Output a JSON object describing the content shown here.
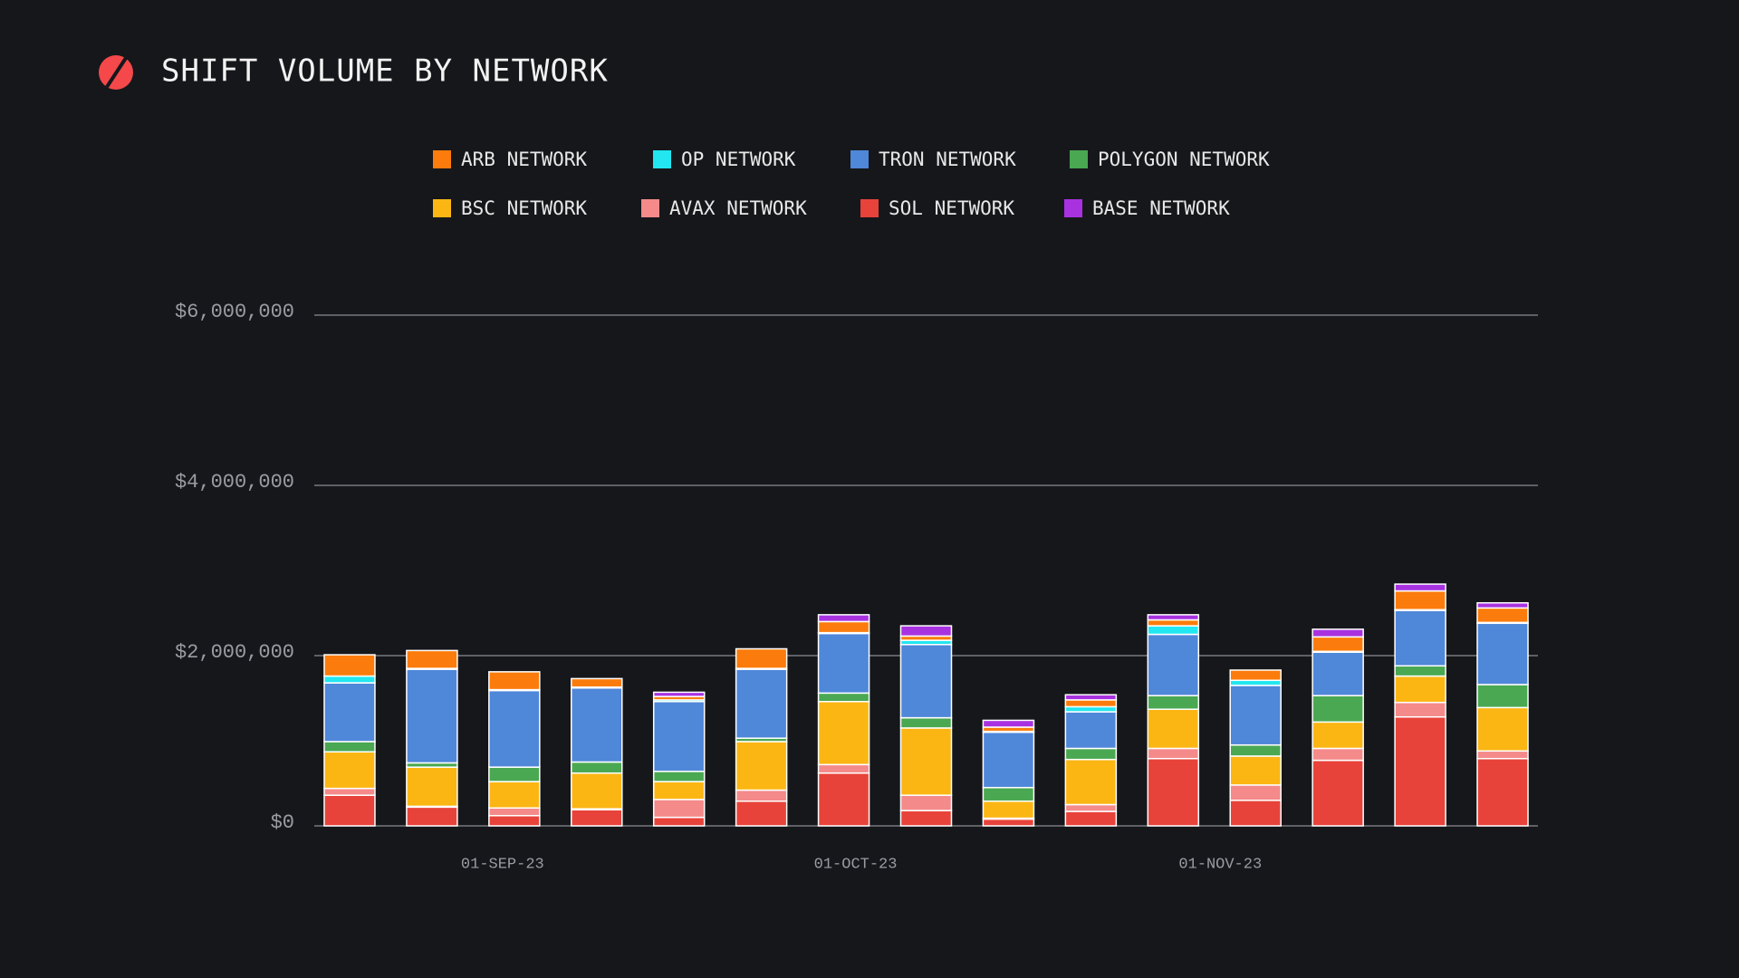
{
  "chart_data": {
    "type": "stacked-bar",
    "title": "SHIFT VOLUME BY NETWORK",
    "x": [
      "19-AUG-23",
      "26-AUG-23",
      "02-SEP-23",
      "09-SEP-23",
      "16-SEP-23",
      "23-SEP-23",
      "30-SEP-23",
      "07-OCT-23",
      "14-OCT-23",
      "21-OCT-23",
      "28-OCT-23",
      "04-NOV-23",
      "11-NOV-23",
      "18-NOV-23",
      "25-NOV-23"
    ],
    "xlim": [
      "16-AUG-23",
      "28-NOV-23"
    ],
    "xticks": [
      "01-SEP-23",
      "01-OCT-23",
      "01-NOV-23"
    ],
    "ylim": [
      0,
      6000000
    ],
    "yticks": [
      {
        "value": 0,
        "label": "$0"
      },
      {
        "value": 2000000,
        "label": "$2,000,000"
      },
      {
        "value": 4000000,
        "label": "$4,000,000"
      },
      {
        "value": 6000000,
        "label": "$6,000,000"
      }
    ],
    "grid": true,
    "legend_order": [
      6,
      5,
      4,
      3,
      2,
      1,
      0,
      7
    ],
    "series": [
      {
        "name": "SOL NETWORK",
        "color": "#e8433a",
        "values": [
          360000,
          220000,
          120000,
          190000,
          100000,
          290000,
          620000,
          180000,
          80000,
          170000,
          790000,
          300000,
          770000,
          1280000,
          790000
        ]
      },
      {
        "name": "AVAX NETWORK",
        "color": "#f48a8a",
        "values": [
          80000,
          10000,
          90000,
          10000,
          210000,
          130000,
          100000,
          180000,
          10000,
          80000,
          120000,
          180000,
          140000,
          170000,
          90000
        ]
      },
      {
        "name": "BSC NETWORK",
        "color": "#fbb614",
        "values": [
          430000,
          460000,
          310000,
          420000,
          210000,
          570000,
          740000,
          790000,
          200000,
          530000,
          460000,
          340000,
          310000,
          310000,
          510000
        ]
      },
      {
        "name": "POLYGON NETWORK",
        "color": "#4aa852",
        "values": [
          120000,
          50000,
          170000,
          130000,
          120000,
          40000,
          100000,
          120000,
          160000,
          130000,
          160000,
          130000,
          310000,
          120000,
          270000
        ]
      },
      {
        "name": "TRON NETWORK",
        "color": "#4f87d9",
        "values": [
          690000,
          1100000,
          900000,
          870000,
          820000,
          810000,
          700000,
          860000,
          650000,
          430000,
          720000,
          700000,
          510000,
          650000,
          720000
        ]
      },
      {
        "name": "OP NETWORK",
        "color": "#22e6f0",
        "values": [
          80000,
          10000,
          10000,
          10000,
          20000,
          10000,
          10000,
          50000,
          10000,
          60000,
          100000,
          60000,
          10000,
          10000,
          10000
        ]
      },
      {
        "name": "ARB NETWORK",
        "color": "#fb7c0c",
        "values": [
          250000,
          210000,
          210000,
          100000,
          40000,
          230000,
          130000,
          50000,
          50000,
          80000,
          70000,
          120000,
          170000,
          220000,
          170000
        ]
      },
      {
        "name": "BASE NETWORK",
        "color": "#a832e0",
        "values": [
          0,
          0,
          0,
          0,
          50000,
          0,
          80000,
          120000,
          80000,
          60000,
          60000,
          0,
          90000,
          80000,
          60000
        ]
      }
    ]
  }
}
